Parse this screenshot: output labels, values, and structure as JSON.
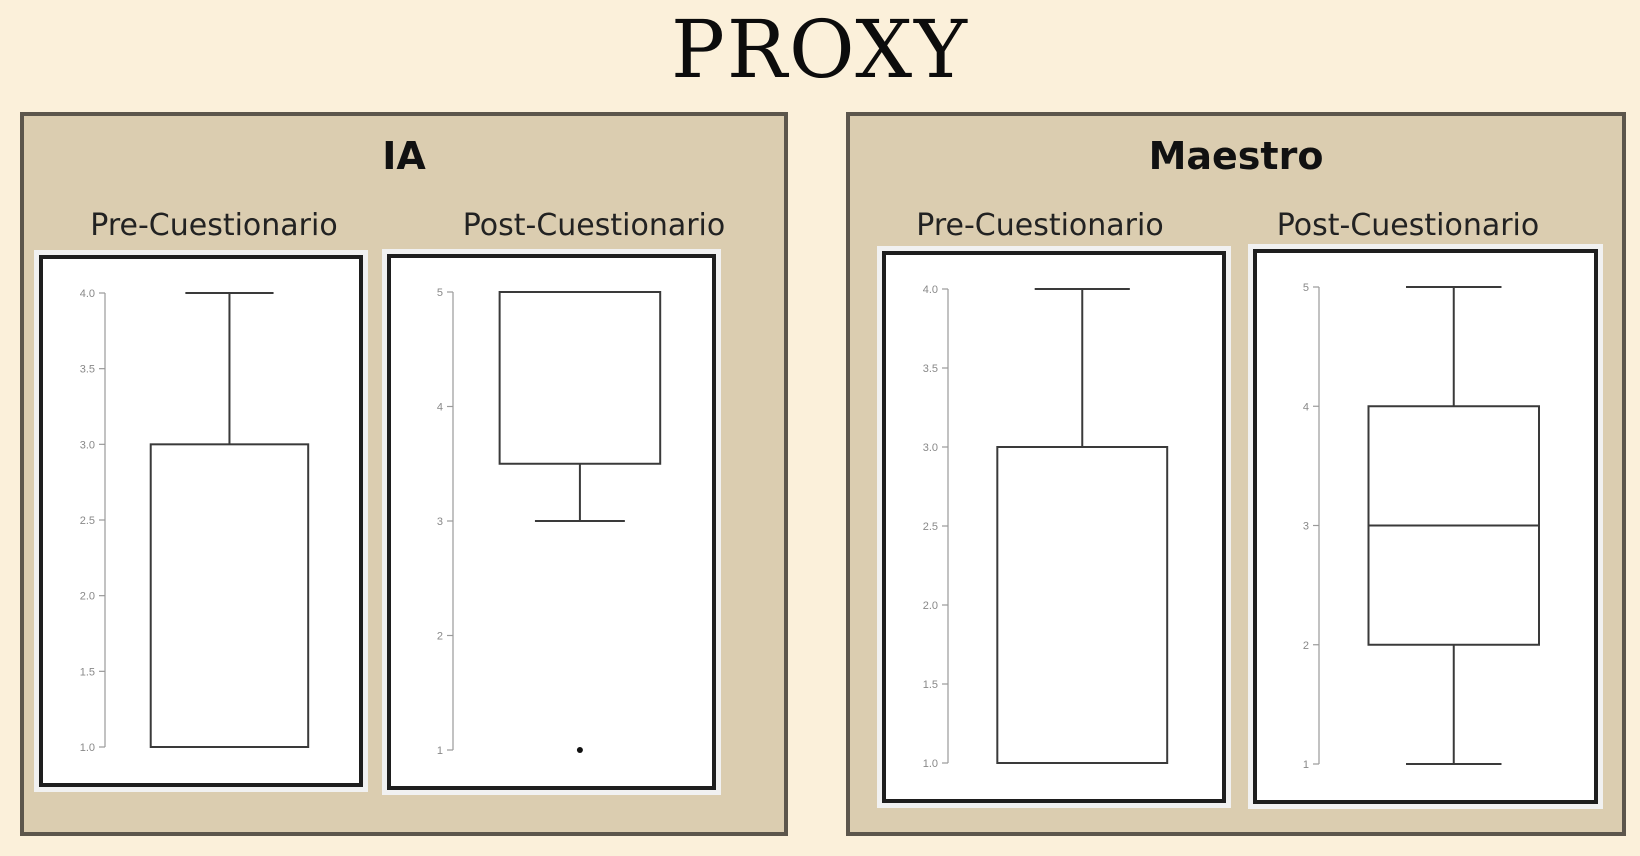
{
  "title": "PROXY",
  "panels": [
    {
      "title": "IA",
      "labels": [
        "Pre-Cuestionario",
        "Post-Cuestionario"
      ]
    },
    {
      "title": "Maestro",
      "labels": [
        "Pre-Cuestionario",
        "Post-Cuestionario"
      ]
    }
  ],
  "chart_data": [
    {
      "type": "box",
      "panel": "IA",
      "title": "Pre-Cuestionario",
      "yticks": [
        "1.0",
        "1.5",
        "2.0",
        "2.5",
        "3.0",
        "3.5",
        "4.0"
      ],
      "ylim": [
        1,
        4
      ],
      "box": {
        "min": 1,
        "q1": 1,
        "median": 1,
        "q3": 3,
        "max": 4
      },
      "outliers": []
    },
    {
      "type": "box",
      "panel": "IA",
      "title": "Post-Cuestionario",
      "yticks": [
        "1",
        "2",
        "3",
        "4",
        "5"
      ],
      "ylim": [
        1,
        5
      ],
      "box": {
        "min": 3,
        "q1": 3.5,
        "median": 5,
        "q3": 5,
        "max": 5
      },
      "outliers": [
        1
      ]
    },
    {
      "type": "box",
      "panel": "Maestro",
      "title": "Pre-Cuestionario",
      "yticks": [
        "1.0",
        "1.5",
        "2.0",
        "2.5",
        "3.0",
        "3.5",
        "4.0"
      ],
      "ylim": [
        1,
        4
      ],
      "box": {
        "min": 1,
        "q1": 1,
        "median": 1,
        "q3": 3,
        "max": 4
      },
      "outliers": []
    },
    {
      "type": "box",
      "panel": "Maestro",
      "title": "Post-Cuestionario",
      "yticks": [
        "1",
        "2",
        "3",
        "4",
        "5"
      ],
      "ylim": [
        1,
        5
      ],
      "box": {
        "min": 1,
        "q1": 2,
        "median": 3,
        "q3": 4,
        "max": 5
      },
      "outliers": []
    }
  ]
}
